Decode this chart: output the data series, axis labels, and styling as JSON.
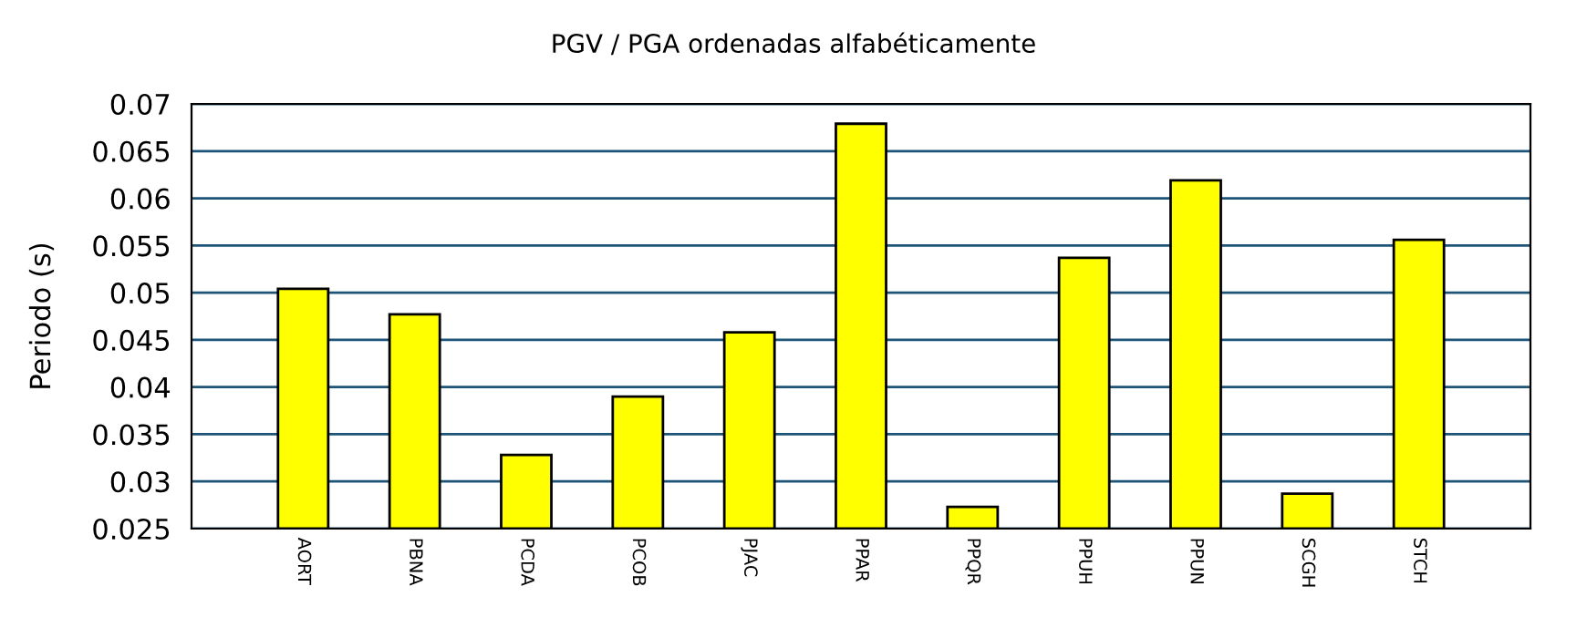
{
  "chart_data": {
    "type": "bar",
    "title": "PGV / PGA ordenadas alfabéticamente",
    "ylabel": "Periodo (s)",
    "categories": [
      "AORT",
      "PBNA",
      "PCDA",
      "PCOB",
      "PJAC",
      "PPAR",
      "PPQR",
      "PPUH",
      "PPUN",
      "SCGH",
      "STCH"
    ],
    "values": [
      0.0504,
      0.0477,
      0.0328,
      0.039,
      0.0458,
      0.0679,
      0.0273,
      0.0537,
      0.0619,
      0.0287,
      0.0556
    ],
    "color": "#ffff00",
    "ylim": [
      0.025,
      0.07
    ],
    "yticks": [
      0.025,
      0.03,
      0.035,
      0.04,
      0.045,
      0.05,
      0.055,
      0.06,
      0.065,
      0.07
    ],
    "grid": "y"
  }
}
